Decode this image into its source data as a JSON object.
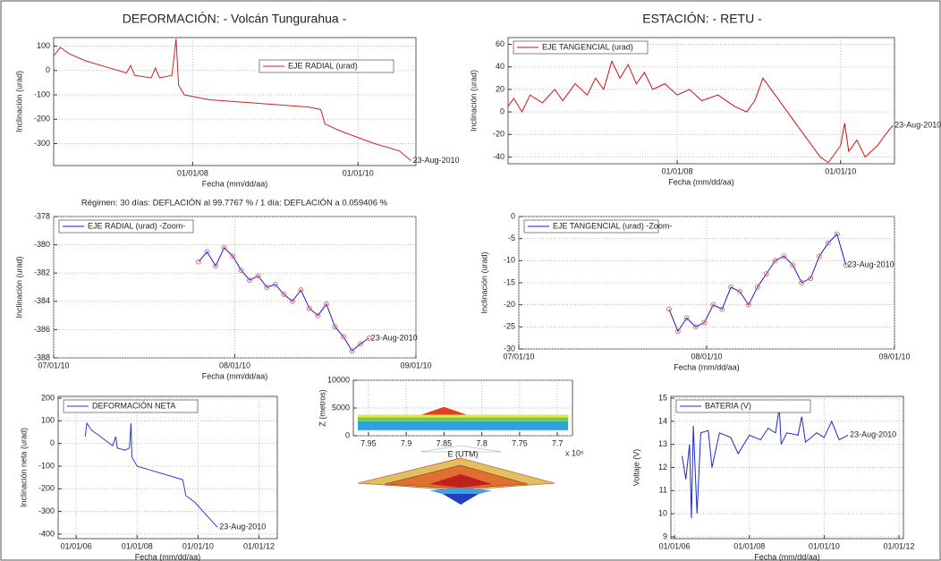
{
  "header": {
    "left_title": "DEFORMACIÓN: - Volcán Tungurahua -",
    "right_title": "ESTACIÓN: - RETU -"
  },
  "regime_note": "Régimen: 30 días: DEFLACIÓN al 99.7767 % / 1 día: DEFLACIÓN a 0.059406 %",
  "chart_data": [
    {
      "type": "line",
      "xlabel": "Fecha (mm/dd/aa)",
      "ylabel": "Inclinación (urad)",
      "legend": "upper right",
      "grid": true,
      "annotation": "23-Aug-2010",
      "xlim": [
        2006.32,
        2010.7
      ],
      "xticks": [
        {
          "value": 2008,
          "label": "01/01/08"
        },
        {
          "value": 2010,
          "label": "01/01/10"
        }
      ],
      "ylim": [
        -390,
        135
      ],
      "yticks": [
        100,
        0,
        -100,
        -200,
        -300
      ],
      "series": [
        {
          "name": "EJE RADIAL (urad)",
          "color": "#d02020",
          "x": [
            2006.32,
            2006.4,
            2006.5,
            2006.7,
            2007.0,
            2007.2,
            2007.25,
            2007.3,
            2007.5,
            2007.55,
            2007.6,
            2007.75,
            2007.8,
            2007.83,
            2007.9,
            2008.2,
            2008.6,
            2009.0,
            2009.4,
            2009.55,
            2009.6,
            2009.8,
            2010.2,
            2010.5,
            2010.64
          ],
          "values": [
            60,
            95,
            70,
            40,
            10,
            -10,
            20,
            -20,
            -30,
            10,
            -30,
            -20,
            130,
            -60,
            -100,
            -120,
            -130,
            -140,
            -150,
            -160,
            -220,
            -250,
            -300,
            -330,
            -370
          ]
        }
      ]
    },
    {
      "type": "line",
      "xlabel": "Fecha (mm/dd/aa)",
      "ylabel": "Inclinación (urad)",
      "legend": "upper left",
      "grid": true,
      "annotation": "23-Aug-2010",
      "xlim": [
        2005.93,
        2010.66
      ],
      "xticks": [
        {
          "value": 2008,
          "label": "01/01/08"
        },
        {
          "value": 2010,
          "label": "01/01/10"
        }
      ],
      "ylim": [
        -46,
        66
      ],
      "yticks": [
        60,
        40,
        20,
        0,
        -20,
        -40
      ],
      "series": [
        {
          "name": "EJE TANGENCIAL (urad)",
          "color": "#cc1111",
          "x": [
            2005.93,
            2006.0,
            2006.1,
            2006.2,
            2006.35,
            2006.5,
            2006.6,
            2006.75,
            2006.9,
            2007.0,
            2007.1,
            2007.2,
            2007.3,
            2007.4,
            2007.5,
            2007.6,
            2007.7,
            2007.85,
            2008.0,
            2008.15,
            2008.3,
            2008.5,
            2008.7,
            2008.85,
            2008.95,
            2009.05,
            2009.15,
            2009.3,
            2009.45,
            2009.6,
            2009.75,
            2009.85,
            2010.0,
            2010.05,
            2010.1,
            2010.2,
            2010.3,
            2010.45,
            2010.55,
            2010.64
          ],
          "values": [
            5,
            12,
            0,
            15,
            8,
            20,
            10,
            25,
            15,
            30,
            20,
            45,
            30,
            42,
            25,
            35,
            20,
            25,
            15,
            20,
            10,
            15,
            5,
            0,
            10,
            30,
            20,
            5,
            -10,
            -25,
            -40,
            -45,
            -30,
            -10,
            -35,
            -25,
            -40,
            -30,
            -20,
            -12
          ]
        }
      ]
    },
    {
      "type": "line",
      "xlabel": "Fecha (mm/dd/aa)",
      "ylabel": "Inclinación (urad)",
      "legend": "upper left",
      "grid": true,
      "annotation": "23-Aug-2010",
      "markers": true,
      "marker_color": "#e07070",
      "xlim": [
        2010.496,
        2010.666
      ],
      "xticks": [
        {
          "value": 2010.496,
          "label": "07/01/10"
        },
        {
          "value": 2010.581,
          "label": "08/01/10"
        },
        {
          "value": 2010.666,
          "label": "09/01/10"
        }
      ],
      "ylim": [
        -388,
        -378
      ],
      "yticks": [
        -378,
        -380,
        -382,
        -384,
        -386,
        -388
      ],
      "series": [
        {
          "name": "EJE RADIAL (urad) -Zoom-",
          "color": "#1a1acc",
          "x": [
            2010.564,
            2010.568,
            2010.572,
            2010.576,
            2010.58,
            2010.584,
            2010.588,
            2010.592,
            2010.596,
            2010.6,
            2010.604,
            2010.608,
            2010.612,
            2010.616,
            2010.62,
            2010.624,
            2010.628,
            2010.632,
            2010.636,
            2010.64,
            2010.644
          ],
          "values": [
            -381.2,
            -380.5,
            -381.5,
            -380.2,
            -380.8,
            -381.8,
            -382.5,
            -382.2,
            -383,
            -382.8,
            -383.5,
            -384,
            -383.2,
            -384.5,
            -385,
            -384.2,
            -385.8,
            -386.5,
            -387.5,
            -387,
            -386.6
          ]
        }
      ]
    },
    {
      "type": "line",
      "xlabel": "Fecha (mm/dd/aa)",
      "ylabel": "Inclinación (urad)",
      "legend": "upper left",
      "grid": true,
      "annotation": "23-Aug-2010",
      "markers": true,
      "marker_color": "#e07070",
      "xlim": [
        2010.496,
        2010.666
      ],
      "xticks": [
        {
          "value": 2010.496,
          "label": "07/01/10"
        },
        {
          "value": 2010.581,
          "label": "08/01/10"
        },
        {
          "value": 2010.666,
          "label": "09/01/10"
        }
      ],
      "ylim": [
        -30,
        0
      ],
      "yticks": [
        0,
        -5,
        -10,
        -15,
        -20,
        -25,
        -30
      ],
      "series": [
        {
          "name": "EJE TANGENCIAL (urad) -Zoom-",
          "color": "#1a1acc",
          "x": [
            2010.564,
            2010.568,
            2010.572,
            2010.576,
            2010.58,
            2010.584,
            2010.588,
            2010.592,
            2010.596,
            2010.6,
            2010.604,
            2010.608,
            2010.612,
            2010.616,
            2010.62,
            2010.624,
            2010.628,
            2010.632,
            2010.636,
            2010.64,
            2010.644
          ],
          "values": [
            -21,
            -26,
            -23,
            -25,
            -24,
            -20,
            -21,
            -16,
            -17,
            -20,
            -16,
            -13,
            -10,
            -9,
            -11,
            -15,
            -14,
            -9,
            -6,
            -4,
            -11
          ]
        }
      ]
    },
    {
      "type": "line",
      "xlabel": "Fecha (mm/dd/aa)",
      "ylabel": "Inclinación neta (urad)",
      "legend": "upper left",
      "grid": true,
      "annotation": "23-Aug-2010",
      "xlim": [
        2005.41,
        2012.6
      ],
      "xticks": [
        {
          "value": 2006,
          "label": "01/01/06"
        },
        {
          "value": 2008,
          "label": "01/01/08"
        },
        {
          "value": 2010,
          "label": "01/01/10"
        },
        {
          "value": 2012,
          "label": "01/01/12"
        }
      ],
      "ylim": [
        -420,
        208
      ],
      "yticks": [
        200,
        100,
        0,
        -100,
        -200,
        -300,
        -400
      ],
      "series": [
        {
          "name": "DEFORMACIÓN NETA",
          "color": "#2a3ad0",
          "x": [
            2006.3,
            2006.35,
            2006.5,
            2006.7,
            2007.0,
            2007.2,
            2007.3,
            2007.35,
            2007.6,
            2007.75,
            2007.8,
            2007.83,
            2008.0,
            2008.5,
            2009.0,
            2009.5,
            2009.6,
            2009.9,
            2010.3,
            2010.64
          ],
          "values": [
            30,
            90,
            60,
            40,
            10,
            -10,
            30,
            -20,
            -30,
            -20,
            90,
            -60,
            -100,
            -120,
            -140,
            -160,
            -230,
            -260,
            -320,
            -370
          ]
        }
      ]
    },
    {
      "type": "surface",
      "xlabel": "E (UTM)",
      "ylabel": "Z (metros)",
      "x_exponent": "x 10⁵",
      "grid": true,
      "xlim": [
        7.97,
        7.68
      ],
      "xticks": [
        7.95,
        7.9,
        7.85,
        7.8,
        7.75,
        7.7
      ],
      "ylim": [
        0,
        10000
      ],
      "yticks": [
        0,
        5000,
        10000
      ]
    },
    {
      "type": "line",
      "xlabel": "Fecha (mm/dd/aa)",
      "ylabel": "Voltaje (V)",
      "legend": "upper left",
      "grid": true,
      "annotation": "23-Aug-2010",
      "xlim": [
        2005.9,
        2012.12
      ],
      "xticks": [
        {
          "value": 2006,
          "label": "01/01/06"
        },
        {
          "value": 2008,
          "label": "01/01/08"
        },
        {
          "value": 2010,
          "label": "01/01/10"
        },
        {
          "value": 2012,
          "label": "01/01/12"
        }
      ],
      "ylim": [
        8.92,
        15.08
      ],
      "yticks": [
        15,
        14,
        13,
        12,
        11,
        10,
        9
      ],
      "series": [
        {
          "name": "BATERIA (V)",
          "color": "#1a2ad0",
          "x": [
            2006.2,
            2006.3,
            2006.4,
            2006.45,
            2006.5,
            2006.6,
            2006.7,
            2006.9,
            2007.0,
            2007.2,
            2007.5,
            2007.7,
            2008.0,
            2008.3,
            2008.5,
            2008.7,
            2008.8,
            2008.85,
            2009.0,
            2009.3,
            2009.4,
            2009.5,
            2009.8,
            2010.0,
            2010.2,
            2010.4,
            2010.64
          ],
          "values": [
            12.5,
            11.5,
            13,
            9.8,
            13.8,
            10,
            13.5,
            13.6,
            12,
            13.5,
            13.3,
            12.6,
            13.4,
            13.2,
            13.7,
            13.5,
            14.6,
            13,
            13.5,
            13.4,
            14.2,
            13.1,
            13.5,
            13.3,
            14,
            13.2,
            13.4
          ]
        }
      ]
    }
  ]
}
